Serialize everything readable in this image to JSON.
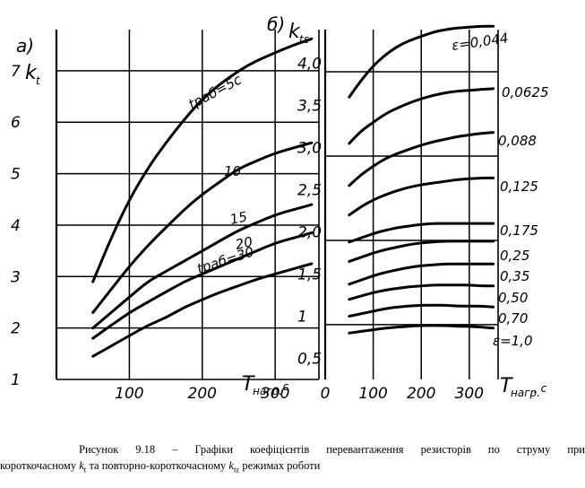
{
  "chart_data": [
    {
      "type": "line",
      "panel_label": "a)",
      "ylabel": "k",
      "ylabel_sub": "t",
      "xlabel": "T",
      "xlabel_sub": "нагр.",
      "xlabel_unit": ", с",
      "xlim": [
        0,
        360
      ],
      "ylim": [
        1,
        7.8
      ],
      "x_ticks": [
        "100",
        "200",
        "300"
      ],
      "y_ticks": [
        "1",
        "2",
        "3",
        "4",
        "5",
        "6",
        "7"
      ],
      "grid": true,
      "series": [
        {
          "name": "tраб=5с",
          "x": [
            50,
            75,
            100,
            125,
            150,
            175,
            200,
            225,
            250,
            275,
            300,
            325,
            350
          ],
          "y": [
            2.9,
            3.75,
            4.5,
            5.1,
            5.6,
            6.05,
            6.45,
            6.75,
            7.0,
            7.2,
            7.35,
            7.5,
            7.62
          ]
        },
        {
          "name": "10",
          "x": [
            50,
            75,
            100,
            125,
            150,
            175,
            200,
            225,
            250,
            275,
            300,
            325,
            350
          ],
          "y": [
            2.3,
            2.75,
            3.2,
            3.6,
            3.95,
            4.3,
            4.6,
            4.85,
            5.1,
            5.25,
            5.4,
            5.5,
            5.6
          ]
        },
        {
          "name": "15",
          "x": [
            50,
            75,
            100,
            125,
            150,
            175,
            200,
            225,
            250,
            275,
            300,
            325,
            350
          ],
          "y": [
            2.0,
            2.3,
            2.6,
            2.9,
            3.1,
            3.3,
            3.5,
            3.7,
            3.9,
            4.05,
            4.2,
            4.3,
            4.4
          ]
        },
        {
          "name": "20",
          "x": [
            50,
            75,
            100,
            125,
            150,
            175,
            200,
            225,
            250,
            275,
            300,
            325,
            350
          ],
          "y": [
            1.8,
            2.05,
            2.3,
            2.5,
            2.7,
            2.9,
            3.05,
            3.2,
            3.35,
            3.5,
            3.65,
            3.75,
            3.85
          ]
        },
        {
          "name": "tраб=30",
          "x": [
            50,
            75,
            100,
            125,
            150,
            175,
            200,
            225,
            250,
            275,
            300,
            325,
            350
          ],
          "y": [
            1.45,
            1.65,
            1.85,
            2.05,
            2.2,
            2.4,
            2.55,
            2.7,
            2.82,
            2.95,
            3.05,
            3.15,
            3.25
          ]
        }
      ]
    },
    {
      "type": "line",
      "panel_label": "б)",
      "ylabel": "k",
      "ylabel_sub": "tε",
      "xlabel": "T",
      "xlabel_sub": "нагр.",
      "xlabel_unit": ", с",
      "xlim": [
        0,
        360
      ],
      "ylim": [
        0.25,
        4.4
      ],
      "x_ticks": [
        "0",
        "100",
        "200",
        "300"
      ],
      "y_ticks": [
        "0,5",
        "1",
        "1,5",
        "2,0",
        "2,5",
        "3,0",
        "3,5",
        "4,0"
      ],
      "grid": true,
      "series": [
        {
          "name": "ε=0,044",
          "x": [
            50,
            75,
            100,
            125,
            150,
            175,
            200,
            225,
            250,
            275,
            300,
            325,
            350
          ],
          "y": [
            3.6,
            3.8,
            3.97,
            4.1,
            4.2,
            4.27,
            4.32,
            4.37,
            4.4,
            4.42,
            4.43,
            4.44,
            4.44
          ]
        },
        {
          "name": "0,0625",
          "x": [
            50,
            75,
            100,
            125,
            150,
            175,
            200,
            225,
            250,
            275,
            300,
            325,
            350
          ],
          "y": [
            3.05,
            3.2,
            3.3,
            3.4,
            3.47,
            3.53,
            3.58,
            3.62,
            3.65,
            3.67,
            3.68,
            3.69,
            3.7
          ]
        },
        {
          "name": "0,088",
          "x": [
            50,
            75,
            100,
            125,
            150,
            175,
            200,
            225,
            250,
            275,
            300,
            325,
            350
          ],
          "y": [
            2.55,
            2.68,
            2.78,
            2.87,
            2.93,
            2.98,
            3.03,
            3.07,
            3.1,
            3.13,
            3.15,
            3.17,
            3.18
          ]
        },
        {
          "name": "0,125",
          "x": [
            50,
            75,
            100,
            125,
            150,
            175,
            200,
            225,
            250,
            275,
            300,
            325,
            350
          ],
          "y": [
            2.2,
            2.3,
            2.38,
            2.44,
            2.49,
            2.53,
            2.56,
            2.58,
            2.6,
            2.62,
            2.63,
            2.64,
            2.64
          ]
        },
        {
          "name": "0,175",
          "x": [
            50,
            75,
            100,
            125,
            150,
            175,
            200,
            225,
            250,
            275,
            300,
            325,
            350
          ],
          "y": [
            1.88,
            1.93,
            1.98,
            2.02,
            2.05,
            2.07,
            2.09,
            2.1,
            2.1,
            2.1,
            2.1,
            2.1,
            2.1
          ]
        },
        {
          "name": "0,25",
          "x": [
            50,
            75,
            100,
            125,
            150,
            175,
            200,
            225,
            250,
            275,
            300,
            325,
            350
          ],
          "y": [
            1.65,
            1.7,
            1.75,
            1.79,
            1.82,
            1.85,
            1.87,
            1.88,
            1.89,
            1.89,
            1.89,
            1.89,
            1.89
          ]
        },
        {
          "name": "0,35",
          "x": [
            50,
            75,
            100,
            125,
            150,
            175,
            200,
            225,
            250,
            275,
            300,
            325,
            350
          ],
          "y": [
            1.38,
            1.43,
            1.48,
            1.52,
            1.55,
            1.58,
            1.6,
            1.61,
            1.62,
            1.62,
            1.62,
            1.62,
            1.62
          ]
        },
        {
          "name": "0,50",
          "x": [
            50,
            75,
            100,
            125,
            150,
            175,
            200,
            225,
            250,
            275,
            300,
            325,
            350
          ],
          "y": [
            1.2,
            1.24,
            1.28,
            1.31,
            1.33,
            1.35,
            1.36,
            1.37,
            1.37,
            1.37,
            1.37,
            1.36,
            1.36
          ]
        },
        {
          "name": "0,70",
          "x": [
            50,
            75,
            100,
            125,
            150,
            175,
            200,
            225,
            250,
            275,
            300,
            325,
            350
          ],
          "y": [
            1.0,
            1.03,
            1.06,
            1.09,
            1.11,
            1.12,
            1.13,
            1.13,
            1.13,
            1.12,
            1.12,
            1.12,
            1.11
          ]
        },
        {
          "name": "ε=1,0",
          "x": [
            50,
            75,
            100,
            125,
            150,
            175,
            200,
            225,
            250,
            275,
            300,
            325,
            350
          ],
          "y": [
            0.8,
            0.82,
            0.84,
            0.86,
            0.87,
            0.88,
            0.89,
            0.89,
            0.89,
            0.88,
            0.88,
            0.87,
            0.86
          ]
        }
      ]
    }
  ],
  "caption": {
    "line1": "Рисунок 9.18 – Графіки коефіцієнтів перевантаження резисторів по струму при",
    "line2_a": "короткочасному ",
    "line2_k1": "k",
    "line2_k1_sub": "t",
    "line2_b": " та повторно-короткочасному ",
    "line2_k2": "k",
    "line2_k2_sub": "tε",
    "line2_c": " режимах роботи"
  }
}
